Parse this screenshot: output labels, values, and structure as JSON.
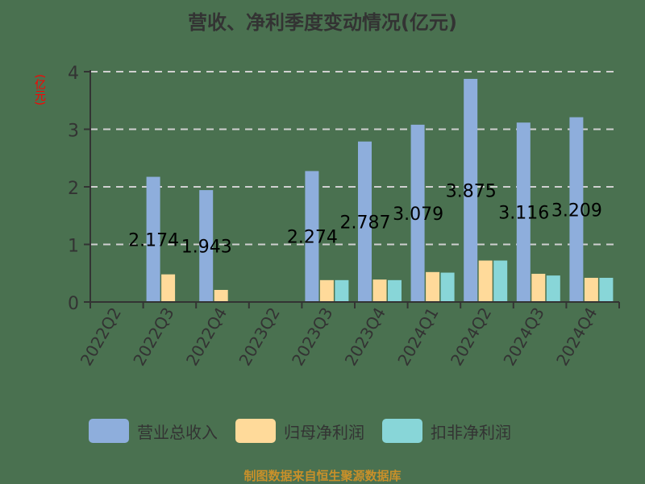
{
  "title": "营收、净利季度变动情况(亿元)",
  "y_unit": "(亿元)",
  "footer": "制图数据来自恒生聚源数据库",
  "legend": [
    {
      "label": "营业总收入",
      "color": "#8eaedc"
    },
    {
      "label": "归母净利润",
      "color": "#ffda9a"
    },
    {
      "label": "扣非净利润",
      "color": "#88d6d8"
    }
  ],
  "chart_data": {
    "type": "bar",
    "title": "营收、净利季度变动情况(亿元)",
    "xlabel": "",
    "ylabel": "(亿元)",
    "ylim": [
      0,
      4
    ],
    "yticks": [
      0,
      1,
      2,
      3,
      4
    ],
    "grid": true,
    "legend_position": "bottom",
    "categories": [
      "2022Q2",
      "2022Q3",
      "2022Q4",
      "2023Q2",
      "2023Q3",
      "2023Q4",
      "2024Q1",
      "2024Q2",
      "2024Q3",
      "2024Q4"
    ],
    "series": [
      {
        "name": "营业总收入",
        "values": [
          null,
          2.174,
          1.943,
          null,
          2.274,
          2.787,
          3.079,
          3.875,
          3.116,
          3.209
        ],
        "labeled": true
      },
      {
        "name": "归母净利润",
        "values": [
          null,
          0.48,
          0.21,
          null,
          0.38,
          0.39,
          0.52,
          0.72,
          0.49,
          0.42
        ]
      },
      {
        "name": "扣非净利润",
        "values": [
          null,
          null,
          null,
          null,
          0.38,
          0.38,
          0.51,
          0.72,
          0.46,
          0.42
        ]
      }
    ],
    "data_labels": [
      "",
      "2.174",
      "1.943",
      "",
      "2.274",
      "2.787",
      "3.079",
      "3.875",
      "3.116",
      "3.209"
    ]
  }
}
